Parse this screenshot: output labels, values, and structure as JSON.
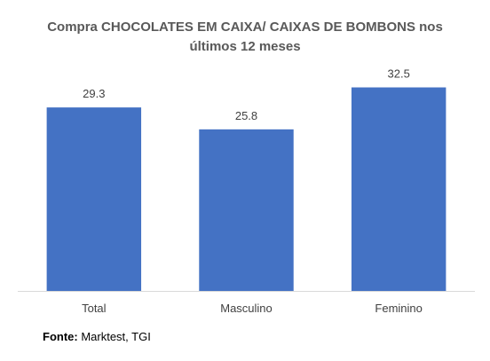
{
  "chart_data": {
    "type": "bar",
    "title": "Compra CHOCOLATES EM CAIXA/ CAIXAS DE BOMBONS nos últimos 12 meses",
    "categories": [
      "Total",
      "Masculino",
      "Feminino"
    ],
    "values": [
      29.3,
      25.8,
      32.5
    ],
    "value_labels": [
      "29.3",
      "25.8",
      "32.5"
    ],
    "ylim": [
      0,
      33
    ],
    "xlabel": "",
    "ylabel": "",
    "grid": false,
    "legend": "none",
    "bar_color": "#4472C4",
    "axis_color": "#D9D9D9"
  },
  "source": {
    "label": "Fonte:",
    "text": " Marktest, TGI"
  }
}
